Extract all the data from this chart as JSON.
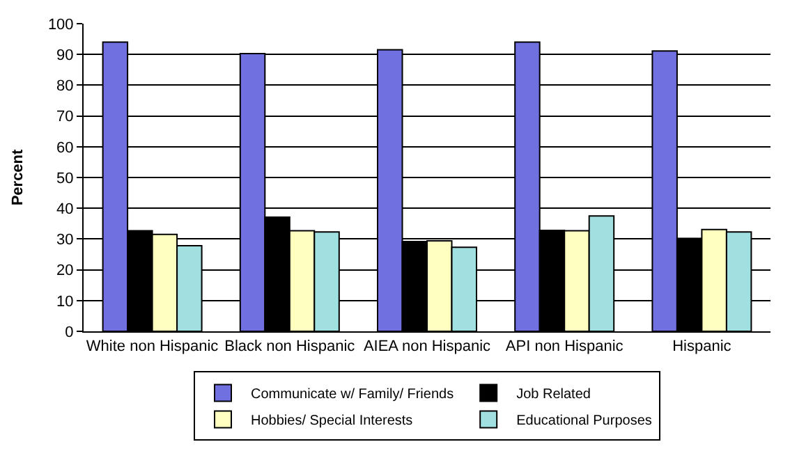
{
  "chart_data": {
    "type": "bar",
    "ylabel": "Percent",
    "categories": [
      "White non Hispanic",
      "Black non Hispanic",
      "AIEA non Hispanic",
      "API non Hispanic",
      "Hispanic"
    ],
    "series": [
      {
        "name": "Communicate w/ Family/ Friends",
        "color": "#7070e0",
        "values": [
          94.0,
          90.3,
          91.5,
          94.0,
          91.1
        ]
      },
      {
        "name": "Job Related",
        "color": "#000000",
        "values": [
          32.7,
          37.1,
          29.2,
          32.8,
          30.2
        ]
      },
      {
        "name": "Hobbies/ Special Interests",
        "color": "#ffffc0",
        "values": [
          31.5,
          32.7,
          29.4,
          32.7,
          33.1
        ]
      },
      {
        "name": "Educational Purposes",
        "color": "#a0e0e0",
        "values": [
          27.8,
          32.3,
          27.3,
          37.5,
          32.3
        ]
      }
    ],
    "ylim": [
      0,
      100
    ],
    "yticks": [
      0,
      10,
      20,
      30,
      40,
      50,
      60,
      70,
      80,
      90,
      100
    ],
    "grid": "y",
    "legend": "bottom"
  }
}
